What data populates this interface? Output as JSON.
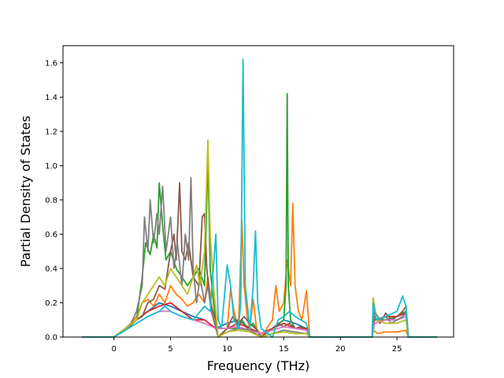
{
  "chart_data": {
    "type": "line",
    "title": "",
    "xlabel": "Frequency (THz)",
    "ylabel": "Partial Density of States",
    "xlim": [
      -4.5,
      30.0
    ],
    "ylim": [
      0.0,
      1.7
    ],
    "grid": false,
    "legend": "none",
    "xticks": [
      0,
      5,
      10,
      15,
      20,
      25
    ],
    "yticks": [
      0.0,
      0.2,
      0.4,
      0.6,
      0.8,
      1.0,
      1.2,
      1.4,
      1.6
    ],
    "xtick_labels": [
      "0",
      "5",
      "10",
      "15",
      "20",
      "25"
    ],
    "ytick_labels": [
      "0.0",
      "0.2",
      "0.4",
      "0.6",
      "0.8",
      "1.0",
      "1.2",
      "1.4",
      "1.6"
    ],
    "series": [
      {
        "color": "#1f77b4",
        "x": [
          -2.8,
          0,
          1,
          2,
          3,
          4,
          5,
          6,
          7,
          8,
          9,
          10,
          11,
          12,
          13,
          14,
          15,
          16,
          17,
          17.3,
          22.8,
          23,
          24,
          25,
          25.8,
          26,
          28.5
        ],
        "y": [
          0,
          0,
          0.05,
          0.1,
          0.15,
          0.2,
          0.18,
          0.15,
          0.12,
          0.1,
          0.05,
          0.08,
          0.1,
          0.05,
          0.02,
          0.05,
          0.1,
          0.08,
          0.05,
          0,
          0,
          0.08,
          0.1,
          0.1,
          0.12,
          0,
          0
        ]
      },
      {
        "color": "#ff7f0e",
        "x": [
          -2.8,
          0,
          1,
          1.5,
          2,
          2.5,
          3,
          3.5,
          4,
          4.5,
          5,
          5.5,
          6,
          6.5,
          7,
          7.5,
          8,
          8.3,
          8.6,
          9,
          9.2,
          10,
          10.3,
          10.6,
          11,
          11.3,
          11.5,
          11.8,
          12,
          12.3,
          12.6,
          13,
          14,
          14.3,
          14.6,
          15,
          15.3,
          15.6,
          15.8,
          16,
          16.3,
          16.6,
          17,
          17.3,
          22.8,
          22.9,
          23.3,
          24,
          25,
          25.8,
          26,
          28.5
        ],
        "y": [
          0,
          0,
          0.05,
          0.08,
          0.12,
          0.2,
          0.22,
          0.18,
          0.25,
          0.2,
          0.3,
          0.25,
          0.22,
          0.18,
          0.2,
          0.25,
          0.2,
          0.35,
          0.2,
          0.05,
          0,
          0.05,
          0.28,
          0.15,
          0.05,
          0.68,
          0.3,
          0.1,
          0.05,
          0.22,
          0.05,
          0,
          0.1,
          0.3,
          0.15,
          0.2,
          0.45,
          0.3,
          0.78,
          0.3,
          0.15,
          0.1,
          0.27,
          0,
          0,
          0.04,
          0.02,
          0.03,
          0.03,
          0.04,
          0,
          0
        ]
      },
      {
        "color": "#2ca02c",
        "x": [
          -2.8,
          0,
          1,
          2,
          2.5,
          2.8,
          3.2,
          3.5,
          3.8,
          4,
          4.3,
          4.6,
          5,
          5.5,
          6,
          6.5,
          7,
          7.5,
          8,
          8.3,
          8.5,
          8.8,
          9.2,
          10,
          11,
          11.3,
          11.8,
          12.3,
          13,
          14,
          15,
          15.2,
          15.3,
          15.4,
          15.6,
          16,
          17,
          17.3,
          22.8,
          23,
          24,
          25,
          25.8,
          26,
          28.5
        ],
        "y": [
          0,
          0,
          0.05,
          0.1,
          0.35,
          0.55,
          0.48,
          0.6,
          0.52,
          0.9,
          0.65,
          0.45,
          0.5,
          0.4,
          0.35,
          0.3,
          0.35,
          0.4,
          0.3,
          1.05,
          0.4,
          0.2,
          0,
          0.05,
          0.05,
          0.1,
          0.05,
          0.08,
          0,
          0.05,
          0.1,
          0.3,
          1.42,
          0.3,
          0.1,
          0.05,
          0.05,
          0,
          0,
          0.1,
          0.1,
          0.12,
          0.15,
          0,
          0
        ]
      },
      {
        "color": "#d62728",
        "x": [
          -2.8,
          0,
          1,
          2,
          3,
          4,
          5,
          6,
          7,
          8,
          9,
          10,
          11,
          12,
          13,
          14,
          15,
          16,
          17,
          17.3,
          22.8,
          23,
          24,
          25,
          25.8,
          26,
          28.5
        ],
        "y": [
          0,
          0,
          0.05,
          0.1,
          0.15,
          0.18,
          0.2,
          0.15,
          0.1,
          0.1,
          0.05,
          0.05,
          0.08,
          0.05,
          0.02,
          0.05,
          0.08,
          0.05,
          0.05,
          0,
          0,
          0.1,
          0.12,
          0.12,
          0.14,
          0,
          0
        ]
      },
      {
        "color": "#8c564b",
        "x": [
          -2.8,
          0,
          1,
          1.5,
          2,
          2.5,
          3,
          3.5,
          4,
          4.5,
          5,
          5.3,
          5.5,
          5.8,
          6,
          6.3,
          6.6,
          7,
          7.5,
          7.8,
          8,
          8.2,
          8.5,
          9,
          9.2,
          10,
          10.5,
          11,
          11.5,
          12,
          12.5,
          13,
          13.5,
          14,
          14.5,
          15,
          15.5,
          16,
          16.5,
          17,
          17.3,
          22.8,
          23,
          23.5,
          24,
          24.5,
          25,
          25.5,
          25.8,
          26,
          28.5
        ],
        "y": [
          0,
          0,
          0.04,
          0.07,
          0.1,
          0.12,
          0.2,
          0.22,
          0.3,
          0.28,
          0.5,
          0.6,
          0.45,
          0.9,
          0.5,
          0.45,
          0.55,
          0.35,
          0.3,
          0.7,
          0.72,
          0.4,
          0.2,
          0.1,
          0,
          0.05,
          0.12,
          0.08,
          0.12,
          0.08,
          0.05,
          0,
          0.03,
          0.05,
          0.08,
          0.06,
          0.08,
          0.05,
          0.06,
          0.04,
          0,
          0,
          0.12,
          0.08,
          0.14,
          0.1,
          0.12,
          0.15,
          0.18,
          0,
          0
        ]
      },
      {
        "color": "#e377c2",
        "x": [
          -2.8,
          0,
          1,
          2,
          3,
          4,
          5,
          6,
          7,
          8,
          9,
          10,
          11,
          12,
          13,
          14,
          15,
          16,
          17,
          17.3,
          22.8,
          23,
          24,
          25,
          25.8,
          26,
          28.5
        ],
        "y": [
          0,
          0,
          0.04,
          0.08,
          0.12,
          0.15,
          0.15,
          0.12,
          0.1,
          0.08,
          0.05,
          0.05,
          0.06,
          0.04,
          0.02,
          0.04,
          0.06,
          0.05,
          0.04,
          0,
          0,
          0.08,
          0.1,
          0.1,
          0.12,
          0,
          0
        ]
      },
      {
        "color": "#7f7f7f",
        "x": [
          -2.8,
          0,
          1,
          1.5,
          2,
          2.5,
          2.7,
          3,
          3.2,
          3.5,
          3.8,
          4,
          4.3,
          4.6,
          5,
          5.3,
          5.6,
          6,
          6.3,
          6.6,
          6.8,
          7,
          7.3,
          7.6,
          8,
          8.3,
          8.6,
          9,
          9.2,
          10,
          11,
          12,
          13,
          14,
          15,
          16,
          17,
          17.3,
          22.8,
          23,
          23.5,
          24,
          24.5,
          25,
          25.5,
          25.8,
          26,
          28.5
        ],
        "y": [
          0,
          0,
          0.05,
          0.08,
          0.15,
          0.3,
          0.7,
          0.5,
          0.8,
          0.55,
          0.72,
          0.6,
          0.88,
          0.5,
          0.7,
          0.4,
          0.55,
          0.3,
          0.6,
          0.45,
          0.93,
          0.4,
          0.2,
          0.35,
          0.2,
          0.3,
          0.15,
          0.05,
          0,
          0.03,
          0.05,
          0.04,
          0,
          0.02,
          0.04,
          0.03,
          0.02,
          0,
          0,
          0.15,
          0.1,
          0.12,
          0.08,
          0.1,
          0.12,
          0.14,
          0,
          0
        ]
      },
      {
        "color": "#bcbd22",
        "x": [
          -2.8,
          0,
          1,
          2,
          2.5,
          3,
          3.5,
          4,
          4.5,
          5,
          5.5,
          6,
          6.5,
          7,
          7.3,
          7.6,
          8,
          8.3,
          8.5,
          8.8,
          9,
          9.2,
          10,
          11,
          12,
          13,
          14,
          15,
          16,
          17,
          17.3,
          22.8,
          22.9,
          23.2,
          24,
          25,
          25.8,
          26,
          28.5
        ],
        "y": [
          0,
          0,
          0.05,
          0.1,
          0.2,
          0.25,
          0.3,
          0.35,
          0.3,
          0.4,
          0.35,
          0.3,
          0.25,
          0.35,
          0.42,
          0.3,
          0.5,
          1.15,
          0.6,
          0.3,
          0.15,
          0,
          0.03,
          0.04,
          0.03,
          0,
          0.02,
          0.03,
          0.02,
          0.02,
          0,
          0,
          0.23,
          0.1,
          0.08,
          0.08,
          0.1,
          0,
          0
        ]
      },
      {
        "color": "#17becf",
        "x": [
          -2.8,
          0,
          1,
          2,
          3,
          4,
          4.5,
          5,
          6,
          7,
          8,
          8.5,
          9,
          9.2,
          9.5,
          10,
          10.3,
          10.6,
          11,
          11.2,
          11.4,
          11.6,
          12,
          12.3,
          12.5,
          12.7,
          13,
          14,
          14.5,
          15,
          15.5,
          16,
          16.5,
          17,
          17.3,
          22.8,
          22.9,
          23.2,
          24,
          25,
          25.5,
          25.8,
          26,
          28.5
        ],
        "y": [
          0,
          0,
          0.04,
          0.08,
          0.12,
          0.15,
          0.18,
          0.15,
          0.12,
          0.1,
          0.18,
          0.15,
          0.6,
          0.1,
          0.05,
          0.42,
          0.3,
          0.1,
          0.05,
          0.2,
          1.62,
          0.3,
          0.05,
          0.3,
          0.62,
          0.2,
          0.05,
          0,
          0.1,
          0.12,
          0.15,
          0.12,
          0.1,
          0.08,
          0,
          0,
          0.2,
          0.1,
          0.12,
          0.15,
          0.24,
          0.18,
          0,
          0
        ]
      }
    ]
  }
}
